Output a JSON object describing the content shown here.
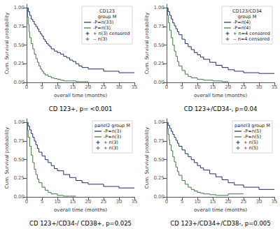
{
  "chart_data": [
    {
      "type": "line",
      "title": "CD 123+, p= <0.001",
      "legend_title": "CD123\ngroup M",
      "legend": "upper right",
      "grid": false,
      "xlabel": "overall time (months)",
      "ylabel": "Cum. Survival probability",
      "xlim": [
        0,
        35
      ],
      "ylim": [
        0,
        1.05
      ],
      "xticks": [
        0,
        5,
        10,
        15,
        20,
        25,
        30,
        35
      ],
      "yticks": [
        {
          "value": 0.0,
          "label": "0.00"
        },
        0.25,
        {
          "value": 0.5,
          "label": "0.50"
        },
        0.75,
        {
          "value": 1.0,
          "label": "1.00"
        }
      ],
      "series": [
        {
          "name": "-P=n(33)",
          "color": "#1a2e6e",
          "line_style": "step-post",
          "x": [
            0,
            0.3,
            0.6,
            1.0,
            1.5,
            2.0,
            2.5,
            3.0,
            3.5,
            4.0,
            4.5,
            5.0,
            5.5,
            6.0,
            6.5,
            7.0,
            7.5,
            8.0,
            9.0,
            10.0,
            11.0,
            12.0,
            13.0,
            14.0,
            15.0,
            16.0,
            17.0,
            18.0,
            20.0,
            25.0,
            30.0,
            35.0
          ],
          "values": [
            1.0,
            1.0,
            0.95,
            0.9,
            0.85,
            0.82,
            0.78,
            0.75,
            0.72,
            0.68,
            0.65,
            0.62,
            0.58,
            0.55,
            0.52,
            0.5,
            0.48,
            0.45,
            0.42,
            0.4,
            0.38,
            0.35,
            0.33,
            0.3,
            0.28,
            0.25,
            0.22,
            0.2,
            0.18,
            0.15,
            0.13,
            0.13
          ]
        },
        {
          "name": "-P=n(3)",
          "color": "#3a7a3a",
          "line_style": "step-post",
          "x": [
            0,
            0.3,
            0.5,
            0.8,
            1.0,
            1.5,
            2.0,
            2.5,
            3.0,
            3.5,
            4.0,
            4.5,
            5.0,
            5.5,
            6.0,
            7.0,
            8.0,
            9.0,
            10.0,
            11.0,
            12.0,
            14.0,
            16.0,
            18.0,
            20.0
          ],
          "values": [
            1.0,
            0.88,
            0.78,
            0.68,
            0.6,
            0.52,
            0.45,
            0.38,
            0.32,
            0.27,
            0.22,
            0.18,
            0.15,
            0.12,
            0.1,
            0.08,
            0.06,
            0.05,
            0.04,
            0.03,
            0.02,
            0.02,
            0.01,
            0.01,
            0.01
          ]
        },
        {
          "name": "+ n(3) censored",
          "color": "#1a2e6e",
          "marker": "+"
        },
        {
          "name": "-- n(3)",
          "color": "#3a7a3a",
          "marker": "+"
        }
      ]
    },
    {
      "type": "line",
      "title": "CD 123+/CD34-, p=0.04",
      "legend_title": "CD123/CD34\ngroup M",
      "legend": "upper right",
      "grid": false,
      "xlabel": "overall time (months)",
      "ylabel": "Cum. Survival probability",
      "xlim": [
        0,
        35
      ],
      "ylim": [
        0,
        1.05
      ],
      "xticks": [
        0,
        5,
        10,
        15,
        20,
        25,
        30,
        35
      ],
      "yticks": [
        {
          "value": 0.0,
          "label": "0.00"
        },
        0.25,
        {
          "value": 0.5,
          "label": "0.50"
        },
        0.75,
        {
          "value": 1.0,
          "label": "1.00"
        }
      ],
      "series": [
        {
          "name": "-P=n(4)",
          "color": "#1a2e6e",
          "line_style": "step-post",
          "x": [
            0,
            0.5,
            1.0,
            1.5,
            2.0,
            2.5,
            3.0,
            3.5,
            4.0,
            5.0,
            6.0,
            7.0,
            8.0,
            9.0,
            10.0,
            11.0,
            12.0,
            14.0,
            16.0,
            18.0,
            20.0,
            22.0,
            25.0,
            30.0,
            35.0
          ],
          "values": [
            1.0,
            0.95,
            0.9,
            0.85,
            0.8,
            0.76,
            0.72,
            0.68,
            0.64,
            0.58,
            0.52,
            0.48,
            0.44,
            0.4,
            0.37,
            0.34,
            0.31,
            0.27,
            0.23,
            0.2,
            0.17,
            0.15,
            0.13,
            0.12,
            0.12
          ]
        },
        {
          "name": "-P=n(4)",
          "color": "#3a7a3a",
          "line_style": "step-post",
          "x": [
            0,
            0.3,
            0.6,
            1.0,
            1.5,
            2.0,
            2.5,
            3.0,
            3.5,
            4.0,
            5.0,
            6.0,
            7.0,
            8.0,
            10.0,
            12.0,
            15.0,
            18.0,
            20.0
          ],
          "values": [
            1.0,
            0.9,
            0.8,
            0.7,
            0.6,
            0.5,
            0.42,
            0.35,
            0.28,
            0.22,
            0.16,
            0.11,
            0.08,
            0.06,
            0.04,
            0.03,
            0.02,
            0.01,
            0.01
          ]
        },
        {
          "name": "+ n=4 censored",
          "color": "#1a2e6e",
          "marker": "+"
        },
        {
          "name": "-- n=4 censored",
          "color": "#3a7a3a",
          "marker": "+"
        }
      ]
    },
    {
      "type": "line",
      "title": "CD 123+/CD34-/ CD38+, p=0.025",
      "legend_title": "panel2 group M",
      "legend": "upper right",
      "grid": false,
      "xlabel": "overall time (months)",
      "ylabel": "Cum. Survival probability",
      "xlim": [
        0,
        35
      ],
      "ylim": [
        0,
        1.05
      ],
      "xticks": [
        0,
        5,
        10,
        15,
        20,
        25,
        30,
        35
      ],
      "yticks": [
        {
          "value": 0.0,
          "label": "0.00"
        },
        0.25,
        {
          "value": 0.5,
          "label": "0.50"
        },
        0.75,
        {
          "value": 1.0,
          "label": "1.00"
        }
      ],
      "series": [
        {
          "name": "-P=n(3)",
          "color": "#1a2e6e",
          "line_style": "step-post",
          "x": [
            0,
            0.5,
            1.0,
            1.5,
            2.0,
            2.5,
            3.0,
            3.5,
            4.0,
            5.0,
            6.0,
            7.0,
            8.0,
            9.0,
            10.0,
            12.0,
            14.0,
            16.0,
            18.0,
            20.0,
            25.0,
            30.0,
            35.0
          ],
          "values": [
            1.0,
            0.95,
            0.9,
            0.85,
            0.8,
            0.75,
            0.7,
            0.65,
            0.6,
            0.55,
            0.5,
            0.46,
            0.42,
            0.38,
            0.35,
            0.3,
            0.26,
            0.22,
            0.19,
            0.17,
            0.14,
            0.12,
            0.12
          ]
        },
        {
          "name": "-P=n(3)",
          "color": "#3a7a3a",
          "line_style": "step-post",
          "x": [
            0,
            0.3,
            0.5,
            1.0,
            1.5,
            2.0,
            2.5,
            3.0,
            3.5,
            4.0,
            5.0,
            6.0,
            7.0,
            8.0,
            10.0,
            12.0,
            14.0,
            16.0
          ],
          "values": [
            1.0,
            0.9,
            0.8,
            0.68,
            0.56,
            0.46,
            0.37,
            0.3,
            0.24,
            0.19,
            0.13,
            0.09,
            0.06,
            0.04,
            0.02,
            0.01,
            0.01,
            0.01
          ]
        },
        {
          "name": "+ n(3)",
          "color": "#1a2e6e",
          "marker": "+"
        },
        {
          "name": "+ n(3)",
          "color": "#3a7a3a",
          "marker": "+"
        }
      ]
    },
    {
      "type": "line",
      "title": "CD 123+/CD34+/CD38-, p=0.005",
      "legend_title": "panel3 group M",
      "legend": "upper right",
      "grid": false,
      "xlabel": "overall time (months)",
      "ylabel": "Cum. Survival probability",
      "xlim": [
        0,
        35
      ],
      "ylim": [
        0,
        1.05
      ],
      "xticks": [
        0,
        5,
        10,
        15,
        20,
        25,
        30,
        35
      ],
      "yticks": [
        {
          "value": 0.0,
          "label": "0.00"
        },
        0.25,
        {
          "value": 0.5,
          "label": "0.50"
        },
        0.75,
        {
          "value": 1.0,
          "label": "1.00"
        }
      ],
      "series": [
        {
          "name": "-P=n(5)",
          "color": "#1a2e6e",
          "line_style": "step-post",
          "x": [
            0,
            0.5,
            1.0,
            1.5,
            2.0,
            2.5,
            3.0,
            3.5,
            4.0,
            5.0,
            6.0,
            7.0,
            8.0,
            9.0,
            10.0,
            11.0,
            12.0,
            14.0,
            16.0,
            18.0,
            20.0,
            22.0,
            25.0,
            30.0,
            35.0
          ],
          "values": [
            1.0,
            0.96,
            0.92,
            0.88,
            0.84,
            0.8,
            0.76,
            0.72,
            0.68,
            0.63,
            0.58,
            0.54,
            0.5,
            0.46,
            0.42,
            0.39,
            0.36,
            0.31,
            0.27,
            0.23,
            0.19,
            0.16,
            0.13,
            0.1,
            0.1
          ]
        },
        {
          "name": "-P=n(5)",
          "color": "#3a7a3a",
          "line_style": "step-post",
          "x": [
            0,
            0.3,
            0.5,
            0.8,
            1.0,
            1.5,
            2.0,
            2.5,
            3.0,
            3.5,
            4.0,
            5.0,
            6.0,
            7.0,
            8.0,
            9.0,
            10.0,
            11.0,
            12.0,
            14.0,
            16.0,
            18.0,
            20.0,
            22.0,
            25.0
          ],
          "values": [
            1.0,
            0.92,
            0.84,
            0.76,
            0.7,
            0.62,
            0.54,
            0.47,
            0.4,
            0.34,
            0.29,
            0.22,
            0.17,
            0.13,
            0.1,
            0.08,
            0.06,
            0.05,
            0.04,
            0.03,
            0.02,
            0.02,
            0.04,
            0.04,
            0.04
          ]
        },
        {
          "name": "+ n(5)",
          "color": "#1a2e6e",
          "marker": "+"
        },
        {
          "name": "+ n(5)",
          "color": "#3a7a3a",
          "marker": "+"
        }
      ]
    }
  ]
}
